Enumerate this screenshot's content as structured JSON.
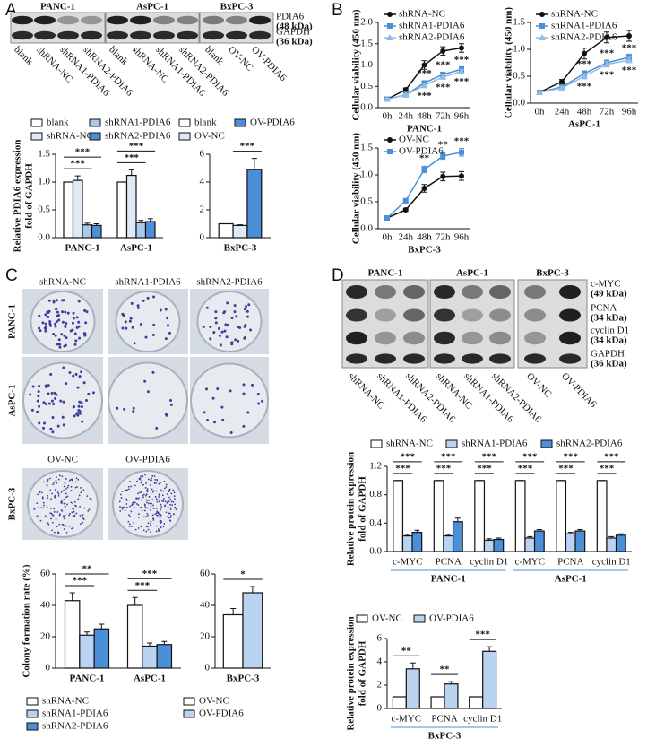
{
  "panels": [
    "A",
    "B",
    "C",
    "D"
  ],
  "blot_a": {
    "cell_lines": [
      "PANC-1",
      "AsPC-1",
      "BxPC-3"
    ],
    "lanes": [
      "blank",
      "shRNA-NC",
      "shRNA1-PDIA6",
      "shRNA2-PDIA6",
      "blank",
      "shRNA-NC",
      "shRNA1-PDIA6",
      "shRNA2-PDIA6",
      "blank",
      "OV-NC",
      "OV-PDIA6"
    ],
    "proteins": [
      {
        "name": "PDIA6",
        "size": "(48 kDa)"
      },
      {
        "name": "GAPDH",
        "size": "(36 kDa)"
      }
    ]
  },
  "colony": {
    "columns": [
      "shRNA-NC",
      "shRNA1-PDIA6",
      "shRNA2-PDIA6"
    ],
    "rows": [
      "PANC-1",
      "AsPC-1",
      "BxPC-3"
    ],
    "bxpc3_columns": [
      "OV-NC",
      "OV-PDIA6"
    ]
  },
  "blot_d": {
    "cell_lines": [
      "PANC-1",
      "AsPC-1",
      "BxPC-3"
    ],
    "lanes": [
      "shRNA-NC",
      "shRNA1-PDIA6",
      "shRNA2-PDIA6",
      "shRNA-NC",
      "shRNA1-PDIA6",
      "shRNA2-PDIA6",
      "OV-NC",
      "OV-PDIA6"
    ],
    "proteins": [
      {
        "name": "c-MYC",
        "size": "(49 kDa)"
      },
      {
        "name": "PCNA",
        "size": "(34 kDa)"
      },
      {
        "name": "cyclin D1",
        "size": "(34 kDa)"
      },
      {
        "name": "GAPDH",
        "size": "(36 kDa)"
      }
    ]
  },
  "chart_data": [
    {
      "type": "bar",
      "ylabel": [
        "Relative PDIA6 expression",
        "fold of GAPDH"
      ],
      "categories": [
        "PANC-1",
        "AsPC-1"
      ],
      "series": [
        {
          "name": "blank",
          "color": "#ffffff",
          "values": [
            1.0,
            1.0
          ],
          "errors": [
            0,
            0
          ]
        },
        {
          "name": "shRNA-NC",
          "color": "#dfeaf6",
          "values": [
            1.03,
            1.12
          ],
          "errors": [
            0.08,
            0.1
          ]
        },
        {
          "name": "shRNA1-PDIA6",
          "color": "#a9c8ec",
          "values": [
            0.23,
            0.27
          ],
          "errors": [
            0.03,
            0.04
          ]
        },
        {
          "name": "shRNA2-PDIA6",
          "color": "#4a8fd8",
          "values": [
            0.22,
            0.29
          ],
          "errors": [
            0.03,
            0.05
          ]
        }
      ],
      "ylim": [
        0,
        1.5
      ],
      "yticks": [
        {
          "value": 0,
          "label": "0.0"
        },
        0.5,
        {
          "value": 1,
          "label": "1.0"
        },
        1.5
      ],
      "annotations": [
        "***",
        "***",
        "***",
        "***"
      ]
    },
    {
      "type": "bar",
      "categories": [
        "BxPC-3"
      ],
      "series": [
        {
          "name": "blank",
          "color": "#ffffff",
          "values": [
            1.0
          ],
          "errors": [
            0
          ]
        },
        {
          "name": "OV-NC",
          "color": "#dfeaf6",
          "values": [
            0.88
          ],
          "errors": [
            0.05
          ]
        },
        {
          "name": "OV-PDIA6",
          "color": "#4a8fd8",
          "values": [
            4.9
          ],
          "errors": [
            0.8
          ]
        }
      ],
      "ylim": [
        0,
        6
      ],
      "yticks": [
        0,
        2,
        4,
        6
      ],
      "annotations": [
        "***"
      ]
    },
    {
      "type": "line",
      "ylabel": "Cellular viability (450 nm)",
      "xlabel": "PANC-1",
      "categories": [
        "0h",
        "24h",
        "48h",
        "72h",
        "96h"
      ],
      "series": [
        {
          "name": "shRNA-NC",
          "color": "#111111",
          "marker": "circle",
          "values": [
            0.2,
            0.42,
            1.0,
            1.33,
            1.4
          ],
          "errors": [
            0.02,
            0.04,
            0.1,
            0.1,
            0.1
          ]
        },
        {
          "name": "shRNA1-PDIA6",
          "color": "#4a8fd8",
          "marker": "square",
          "values": [
            0.2,
            0.3,
            0.58,
            0.78,
            0.9
          ],
          "errors": [
            0.02,
            0.03,
            0.05,
            0.05,
            0.06
          ]
        },
        {
          "name": "shRNA2-PDIA6",
          "color": "#8fbde8",
          "marker": "triangle",
          "values": [
            0.2,
            0.3,
            0.52,
            0.72,
            0.85
          ],
          "errors": [
            0.02,
            0.03,
            0.05,
            0.05,
            0.05
          ]
        }
      ],
      "ylim": [
        0,
        2
      ],
      "yticks": [
        {
          "value": 0,
          "label": "0.0"
        },
        0.5,
        {
          "value": 1,
          "label": "1.0"
        },
        1.5,
        {
          "value": 2,
          "label": "2.0"
        }
      ],
      "annotations": [
        "***",
        "***",
        "***",
        "***",
        "***",
        "***"
      ]
    },
    {
      "type": "line",
      "ylabel": "Cellular viability (450 nm)",
      "xlabel": "AsPC-1",
      "categories": [
        "0h",
        "24h",
        "48h",
        "72h",
        "96h"
      ],
      "series": [
        {
          "name": "shRNA-NC",
          "color": "#111111",
          "marker": "circle",
          "values": [
            0.2,
            0.4,
            0.92,
            1.22,
            1.25
          ],
          "errors": [
            0.02,
            0.04,
            0.1,
            0.1,
            0.1
          ]
        },
        {
          "name": "shRNA1-PDIA6",
          "color": "#4a8fd8",
          "marker": "square",
          "values": [
            0.2,
            0.3,
            0.55,
            0.75,
            0.85
          ],
          "errors": [
            0.02,
            0.03,
            0.05,
            0.05,
            0.06
          ]
        },
        {
          "name": "shRNA2-PDIA6",
          "color": "#8fbde8",
          "marker": "triangle",
          "values": [
            0.2,
            0.28,
            0.5,
            0.72,
            0.8
          ],
          "errors": [
            0.02,
            0.03,
            0.05,
            0.05,
            0.05
          ]
        }
      ],
      "ylim": [
        0,
        1.5
      ],
      "yticks": [
        {
          "value": 0,
          "label": "0.0"
        },
        0.5,
        {
          "value": 1,
          "label": "1.0"
        },
        1.5
      ],
      "annotations": [
        "***",
        "***",
        "***",
        "***",
        "***",
        "***"
      ]
    },
    {
      "type": "line",
      "ylabel": "Cellular viability (450 nm)",
      "xlabel": "BxPC-3",
      "categories": [
        "0h",
        "24h",
        "48h",
        "72h",
        "96h"
      ],
      "series": [
        {
          "name": "OV-NC",
          "color": "#111111",
          "marker": "circle",
          "values": [
            0.2,
            0.35,
            0.75,
            0.97,
            0.98
          ],
          "errors": [
            0.02,
            0.03,
            0.07,
            0.08,
            0.08
          ]
        },
        {
          "name": "OV-PDIA6",
          "color": "#4a8fd8",
          "marker": "square",
          "values": [
            0.2,
            0.52,
            1.1,
            1.35,
            1.42
          ],
          "errors": [
            0.02,
            0.04,
            0.06,
            0.06,
            0.07
          ]
        }
      ],
      "ylim": [
        0,
        1.5
      ],
      "yticks": [
        {
          "value": 0,
          "label": "0.0"
        },
        0.5,
        {
          "value": 1,
          "label": "1.0"
        },
        1.5
      ],
      "annotations": [
        "**",
        "**",
        "***"
      ]
    },
    {
      "type": "bar",
      "ylabel": [
        "Colony formation rate (%)"
      ],
      "categories": [
        "PANC-1",
        "AsPC-1"
      ],
      "series": [
        {
          "name": "shRNA-NC",
          "color": "#ffffff",
          "values": [
            43,
            40
          ],
          "errors": [
            5,
            5
          ]
        },
        {
          "name": "shRNA1-PDIA6",
          "color": "#b9d3f0",
          "values": [
            21,
            14
          ],
          "errors": [
            2,
            2
          ]
        },
        {
          "name": "shRNA2-PDIA6",
          "color": "#4a8fd8",
          "values": [
            25,
            15
          ],
          "errors": [
            3,
            2
          ]
        }
      ],
      "ylim": [
        0,
        60
      ],
      "yticks": [
        0,
        20,
        40,
        60
      ],
      "annotations": [
        "***",
        "**",
        "***",
        "***"
      ]
    },
    {
      "type": "bar",
      "categories": [
        "BxPC-3"
      ],
      "series": [
        {
          "name": "OV-NC",
          "color": "#ffffff",
          "values": [
            34
          ],
          "errors": [
            4
          ]
        },
        {
          "name": "OV-PDIA6",
          "color": "#b9d3f0",
          "values": [
            48
          ],
          "errors": [
            4
          ]
        }
      ],
      "ylim": [
        0,
        60
      ],
      "yticks": [
        0,
        20,
        40,
        60
      ],
      "annotations": [
        "*"
      ]
    },
    {
      "type": "bar",
      "ylabel": [
        "Relative protein expression",
        "fold of GAPDH"
      ],
      "categories": [
        "c-MYC",
        "PCNA",
        "cyclin D1",
        "c-MYC",
        "PCNA",
        "cyclin D1"
      ],
      "groups": [
        "PANC-1",
        "AsPC-1"
      ],
      "series": [
        {
          "name": "shRNA-NC",
          "color": "#ffffff",
          "values": [
            1,
            1,
            1,
            1,
            1,
            1
          ],
          "errors": [
            0,
            0,
            0,
            0,
            0,
            0
          ]
        },
        {
          "name": "shRNA1-PDIA6",
          "color": "#b9d3f0",
          "values": [
            0.22,
            0.22,
            0.16,
            0.19,
            0.25,
            0.19
          ],
          "errors": [
            0.02,
            0.02,
            0.02,
            0.02,
            0.02,
            0.02
          ]
        },
        {
          "name": "shRNA2-PDIA6",
          "color": "#4a8fd8",
          "values": [
            0.27,
            0.42,
            0.17,
            0.29,
            0.29,
            0.23
          ],
          "errors": [
            0.03,
            0.05,
            0.02,
            0.02,
            0.02,
            0.02
          ]
        }
      ],
      "ylim": [
        0,
        1.2
      ],
      "yticks": [
        {
          "value": 0,
          "label": "0.0"
        },
        0.4,
        0.8,
        1.2
      ],
      "annotations": [
        "***",
        "***",
        "***",
        "***",
        "***",
        "***",
        "***",
        "***",
        "***",
        "***",
        "***",
        "***"
      ]
    },
    {
      "type": "bar",
      "ylabel": [
        "Relative protein expression",
        "fold of GAPDH"
      ],
      "categories": [
        "c-MYC",
        "PCNA",
        "cyclin D1"
      ],
      "groups": [
        "BxPC-3"
      ],
      "series": [
        {
          "name": "OV-NC",
          "color": "#ffffff",
          "values": [
            1,
            1,
            1
          ],
          "errors": [
            0,
            0,
            0
          ]
        },
        {
          "name": "OV-PDIA6",
          "color": "#b9d3f0",
          "values": [
            3.4,
            2.1,
            4.9
          ],
          "errors": [
            0.5,
            0.2,
            0.4
          ]
        }
      ],
      "ylim": [
        0,
        6
      ],
      "yticks": [
        0,
        2,
        4,
        6
      ],
      "annotations": [
        "**",
        "**",
        "***"
      ]
    }
  ]
}
